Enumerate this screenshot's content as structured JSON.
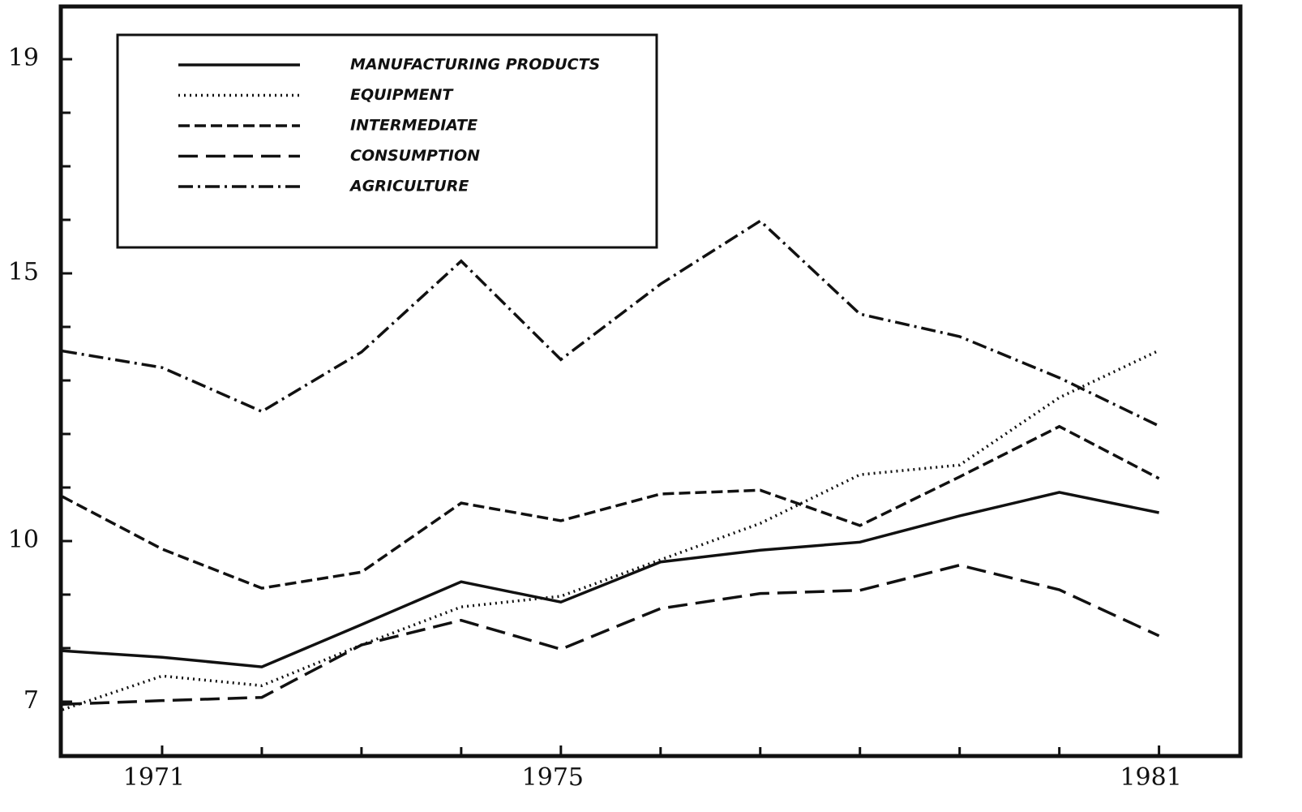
{
  "chart_data": {
    "type": "line",
    "x": [
      1970,
      1971,
      1972,
      1973,
      1974,
      1975,
      1976,
      1977,
      1978,
      1979,
      1980,
      1981
    ],
    "xlim": [
      1970,
      1981.8
    ],
    "xticks": [
      1971,
      1975,
      1981
    ],
    "minor_xticks": [
      1972,
      1973,
      1974,
      1976,
      1977,
      1978,
      1979,
      1980
    ],
    "ylim": [
      6,
      20
    ],
    "yticks": [
      7,
      10,
      15,
      19
    ],
    "minor_yticks": [
      8,
      9,
      11,
      12,
      13,
      14,
      16,
      17,
      18
    ],
    "series": [
      {
        "name": "MANUFACTURING PRODUCTS",
        "color": "#111111",
        "dash": "none",
        "values": [
          7.95,
          7.83,
          7.65,
          8.44,
          9.24,
          8.86,
          9.61,
          9.83,
          9.98,
          10.47,
          10.91,
          10.53
        ]
      },
      {
        "name": "EQUIPMENT",
        "color": "#111111",
        "dash": "2 5",
        "values": [
          6.85,
          7.48,
          7.3,
          8.06,
          8.77,
          8.97,
          9.65,
          10.33,
          11.24,
          11.42,
          12.68,
          13.56
        ]
      },
      {
        "name": "INTERMEDIATE",
        "color": "#111111",
        "dash": "14 6",
        "values": [
          10.83,
          9.85,
          9.12,
          9.42,
          10.71,
          10.38,
          10.88,
          10.95,
          10.29,
          11.2,
          12.14,
          11.17
        ]
      },
      {
        "name": "CONSUMPTION",
        "color": "#111111",
        "dash": "24 10",
        "values": [
          6.95,
          7.02,
          7.08,
          8.06,
          8.52,
          7.98,
          8.74,
          9.02,
          9.08,
          9.55,
          9.09,
          8.23
        ]
      },
      {
        "name": "AGRICULTURE",
        "color": "#111111",
        "dash": "18 6 3 6",
        "values": [
          13.55,
          13.24,
          12.42,
          13.53,
          15.23,
          13.39,
          14.8,
          15.98,
          14.24,
          13.82,
          13.05,
          12.15
        ]
      }
    ]
  }
}
